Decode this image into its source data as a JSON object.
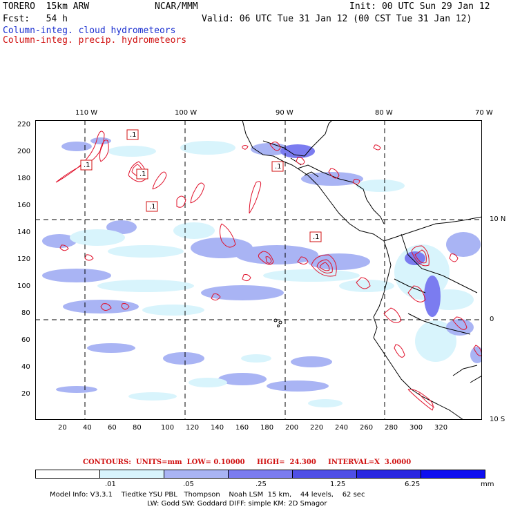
{
  "header": {
    "model": "TORERO  15km ARW",
    "center": "NCAR/MMM",
    "init": "Init: 00 UTC Sun 29 Jan 12",
    "fcst": "Fcst:   54 h",
    "valid": "Valid: 06 UTC Tue 31 Jan 12 (00 CST Tue 31 Jan 12)",
    "field_cloud": "Column-integ. cloud hydrometeors",
    "field_precip": "Column-integ. precip. hydrometeors"
  },
  "colors": {
    "cloud_label": "#1a2fd0",
    "precip_label": "#d01010",
    "contour": "#e0102a",
    "shade_levels": [
      "#ffffff",
      "#d8f4fc",
      "#a9b4f4",
      "#7b7cf0",
      "#4f4fe6",
      "#2a28e0",
      "#0f0ff0"
    ]
  },
  "axes": {
    "lon_labels": [
      "110 W",
      "100 W",
      "90 W",
      "80 W",
      "70 W"
    ],
    "lat_labels": [
      "10 N",
      "0",
      "10 S"
    ],
    "x_ticks": [
      "20",
      "40",
      "60",
      "80",
      "100",
      "120",
      "140",
      "160",
      "180",
      "200",
      "220",
      "240",
      "260",
      "280",
      "300",
      "320"
    ],
    "y_ticks": [
      "220",
      "200",
      "180",
      "160",
      "140",
      "120",
      "100",
      "80",
      "60",
      "40",
      "20"
    ]
  },
  "contour_labels": [
    ".1",
    ".1",
    ".1",
    ".1",
    ".1",
    ".1"
  ],
  "contour_info": "CONTOURS:  UNITS=mm  LOW= 0.10000     HIGH=  24.300     INTERVAL=X  3.0000",
  "colorbar": {
    "labels": [
      ".01",
      ".05",
      ".25",
      "1.25",
      "6.25"
    ],
    "unit": "mm"
  },
  "model_info": {
    "line1": "Model Info: V3.3.1    Tiedtke YSU PBL   Thompson    Noah LSM  15 km,    44 levels,    62 sec",
    "line2": "LW: Godd SW: Goddard DIFF: simple KM: 2D Smagor"
  }
}
